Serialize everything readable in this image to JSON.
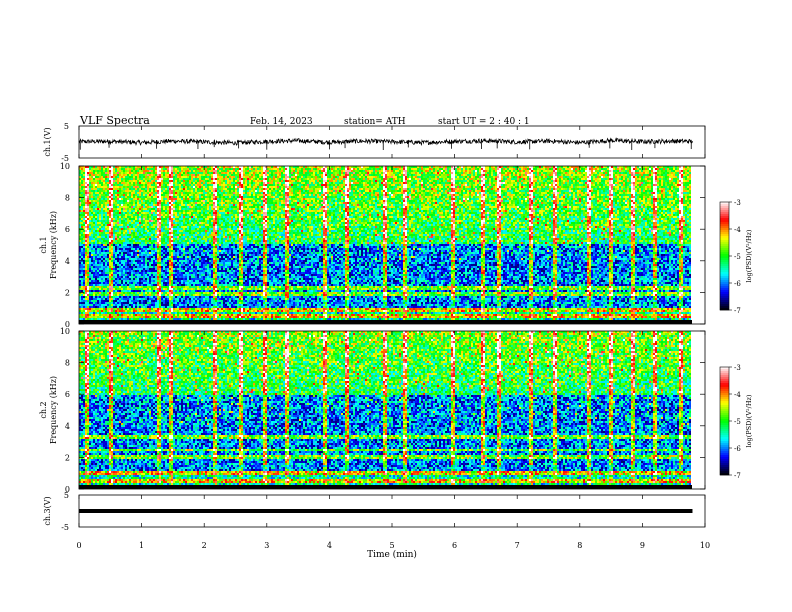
{
  "header": {
    "title": "VLF  Spectra",
    "date": "Feb. 14, 2023",
    "station": "station= ATH",
    "start": "start  UT  =    2  : 40 : 1"
  },
  "chart_data": [
    {
      "type": "line",
      "panel": "ch1-voltage",
      "ylabel": "ch.1(V)",
      "ylim": [
        -5,
        5
      ],
      "yticks": [
        "5",
        "-5"
      ],
      "xlim": [
        0,
        10
      ],
      "baseline": 0,
      "x": [
        0,
        0.5,
        1,
        1.5,
        2,
        2.5,
        3,
        3.5,
        4,
        4.5,
        5,
        5.5,
        6,
        6.5,
        7,
        7.5,
        8,
        8.5,
        9,
        9.5,
        9.8
      ],
      "values": [
        0.1,
        0.2,
        -0.2,
        0.3,
        0,
        -0.3,
        0.2,
        0.4,
        -0.1,
        0.3,
        0.1,
        -0.2,
        0.2,
        0.4,
        0,
        0.3,
        -0.2,
        0.5,
        0.1,
        0.3,
        0.2
      ],
      "spike_times_min": [
        0.02,
        0.48,
        1.24,
        1.9,
        2.16,
        2.55,
        3.0,
        4.0,
        4.25,
        4.86,
        5.26,
        5.95,
        6.43,
        6.68,
        7.2,
        8.15,
        8.48,
        8.83,
        9.2,
        9.78
      ],
      "spike_amplitudes_v": [
        -2.4,
        -1.8,
        -2.1,
        -2.2,
        -1.6,
        -2.0,
        -2.4,
        -2.3,
        -1.9,
        -2.5,
        -1.7,
        -2.1,
        -2.2,
        -2.0,
        -2.3,
        -1.8,
        -2.0,
        -2.5,
        -1.9,
        -2.2
      ]
    },
    {
      "type": "heatmap",
      "panel": "ch1-spectrogram",
      "ylabel_line1": "ch.1",
      "ylabel_line2": "Frequency  (kHz)",
      "ylim": [
        0,
        10
      ],
      "yticks": [
        "0",
        "2",
        "4",
        "6",
        "8",
        "10"
      ],
      "xlim": [
        0,
        9.8
      ],
      "hot_bands_khz": [
        0.2,
        0.5,
        0.9,
        1.9,
        2.3
      ],
      "quiet_band_khz": [
        1.0,
        5.0
      ],
      "sferic_times_min": [
        0.09,
        0.48,
        1.24,
        1.45,
        2.16,
        2.55,
        2.95,
        3.3,
        3.9,
        4.25,
        4.86,
        5.2,
        5.95,
        6.43,
        6.68,
        7.2,
        7.6,
        8.15,
        8.48,
        8.83,
        9.2,
        9.62
      ]
    },
    {
      "type": "heatmap",
      "panel": "ch2-spectrogram",
      "ylabel_line1": "ch.2",
      "ylabel_line2": "Frequency  (kHz)",
      "ylim": [
        0,
        10
      ],
      "yticks": [
        "0",
        "2",
        "4",
        "6",
        "8",
        "10"
      ],
      "xlim": [
        0,
        9.8
      ],
      "hot_bands_khz": [
        0.5,
        1.0,
        2.0,
        2.5,
        3.3
      ],
      "quiet_band_khz": [
        1.2,
        6.0
      ],
      "sferic_times_min": [
        0.09,
        0.48,
        1.24,
        1.45,
        2.16,
        2.55,
        2.95,
        3.3,
        3.9,
        4.25,
        4.86,
        5.2,
        5.95,
        6.43,
        6.68,
        7.2,
        7.6,
        8.15,
        8.48,
        8.83,
        9.2,
        9.62
      ]
    },
    {
      "type": "line",
      "panel": "ch3-voltage",
      "ylabel": "ch.3(V)",
      "ylim": [
        -5,
        5
      ],
      "yticks": [
        "5",
        "-5"
      ],
      "xlim": [
        0,
        10
      ],
      "x": [
        0,
        9.8
      ],
      "values": [
        0,
        0
      ]
    }
  ],
  "xaxis": {
    "label": "Time  (min)",
    "ticks": [
      "0",
      "1",
      "2",
      "3",
      "4",
      "5",
      "6",
      "7",
      "8",
      "9",
      "10"
    ]
  },
  "colorbar": {
    "label": "log(PSD)(V²/Hz)",
    "ticks": [
      "-3",
      "-4",
      "-5",
      "-6",
      "-7"
    ],
    "range": [
      -7,
      -3
    ],
    "colors": [
      "#000000",
      "#00007f",
      "#0000ff",
      "#0080ff",
      "#00ffff",
      "#00ff7f",
      "#00ff00",
      "#7fff00",
      "#ffff00",
      "#ff8000",
      "#ff0000",
      "#ff8080",
      "#ffffff"
    ]
  }
}
